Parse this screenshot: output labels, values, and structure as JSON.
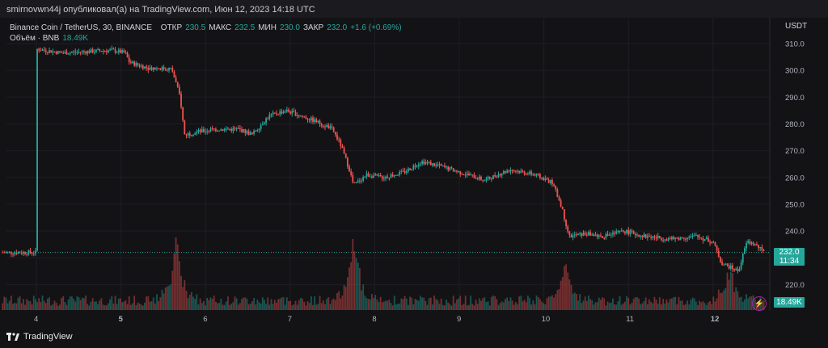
{
  "header": {
    "publisher_line": "smirnovwn44j опубликовал(а) на TradingView.com, Июн 12, 2023 14:18 UTC"
  },
  "legend": {
    "symbol": "Binance Coin / TetherUS, 30, BINANCE",
    "open_label": "ОТКР",
    "open_value": "230.5",
    "high_label": "МАКС",
    "high_value": "232.5",
    "low_label": "МИН",
    "low_value": "230.0",
    "close_label": "ЗАКР",
    "close_value": "232.0",
    "change": "+1.6 (+0.69%)",
    "volume_label": "Объём · BNB",
    "volume_value": "18.49K"
  },
  "price_axis": {
    "currency": "USDT",
    "current_price": "232.0",
    "countdown": "11:34",
    "volume_tag": "18.49K"
  },
  "footer": {
    "brand": "TradingView"
  },
  "colors": {
    "up": "#26a69a",
    "down": "#ef5350",
    "background": "#131316"
  },
  "chart_data": {
    "type": "candlestick",
    "title": "Binance Coin / TetherUS, 30, BINANCE",
    "x_tick_labels": [
      "4",
      "5",
      "6",
      "7",
      "8",
      "9",
      "10",
      "11",
      "12"
    ],
    "y_tick_labels": [
      "310.0",
      "300.0",
      "290.0",
      "280.0",
      "270.0",
      "260.0",
      "250.0",
      "240.0",
      "230.0",
      "220.0"
    ],
    "ylim": [
      215,
      313
    ],
    "last_close": 232.0,
    "close_path": [
      {
        "x": 0.0,
        "y": 308
      },
      {
        "x": 0.3,
        "y": 306.5
      },
      {
        "x": 0.6,
        "y": 307
      },
      {
        "x": 0.9,
        "y": 307.5
      },
      {
        "x": 1.05,
        "y": 306.5
      },
      {
        "x": 1.1,
        "y": 303
      },
      {
        "x": 1.3,
        "y": 301
      },
      {
        "x": 1.6,
        "y": 300.5
      },
      {
        "x": 1.7,
        "y": 290
      },
      {
        "x": 1.75,
        "y": 276
      },
      {
        "x": 1.9,
        "y": 277
      },
      {
        "x": 2.1,
        "y": 278
      },
      {
        "x": 2.4,
        "y": 278
      },
      {
        "x": 2.55,
        "y": 276
      },
      {
        "x": 2.75,
        "y": 283
      },
      {
        "x": 2.95,
        "y": 285
      },
      {
        "x": 3.3,
        "y": 281
      },
      {
        "x": 3.5,
        "y": 278
      },
      {
        "x": 3.6,
        "y": 272
      },
      {
        "x": 3.7,
        "y": 263
      },
      {
        "x": 3.75,
        "y": 257
      },
      {
        "x": 3.9,
        "y": 261
      },
      {
        "x": 4.1,
        "y": 260
      },
      {
        "x": 4.35,
        "y": 262
      },
      {
        "x": 4.55,
        "y": 266
      },
      {
        "x": 4.8,
        "y": 264
      },
      {
        "x": 5.0,
        "y": 262
      },
      {
        "x": 5.3,
        "y": 259
      },
      {
        "x": 5.6,
        "y": 263
      },
      {
        "x": 5.9,
        "y": 261
      },
      {
        "x": 6.1,
        "y": 258
      },
      {
        "x": 6.2,
        "y": 250
      },
      {
        "x": 6.3,
        "y": 238
      },
      {
        "x": 6.5,
        "y": 239
      },
      {
        "x": 6.7,
        "y": 238
      },
      {
        "x": 6.95,
        "y": 240
      },
      {
        "x": 7.2,
        "y": 238
      },
      {
        "x": 7.5,
        "y": 237
      },
      {
        "x": 7.8,
        "y": 238
      },
      {
        "x": 8.0,
        "y": 236
      },
      {
        "x": 8.1,
        "y": 228
      },
      {
        "x": 8.3,
        "y": 225
      },
      {
        "x": 8.4,
        "y": 236
      },
      {
        "x": 8.5,
        "y": 235
      },
      {
        "x": 8.6,
        "y": 232
      }
    ],
    "volume_spikes": [
      {
        "x": 1.65,
        "v": 1.0
      },
      {
        "x": 3.75,
        "v": 1.0
      },
      {
        "x": 6.25,
        "v": 0.6
      },
      {
        "x": 8.2,
        "v": 0.55
      }
    ]
  }
}
